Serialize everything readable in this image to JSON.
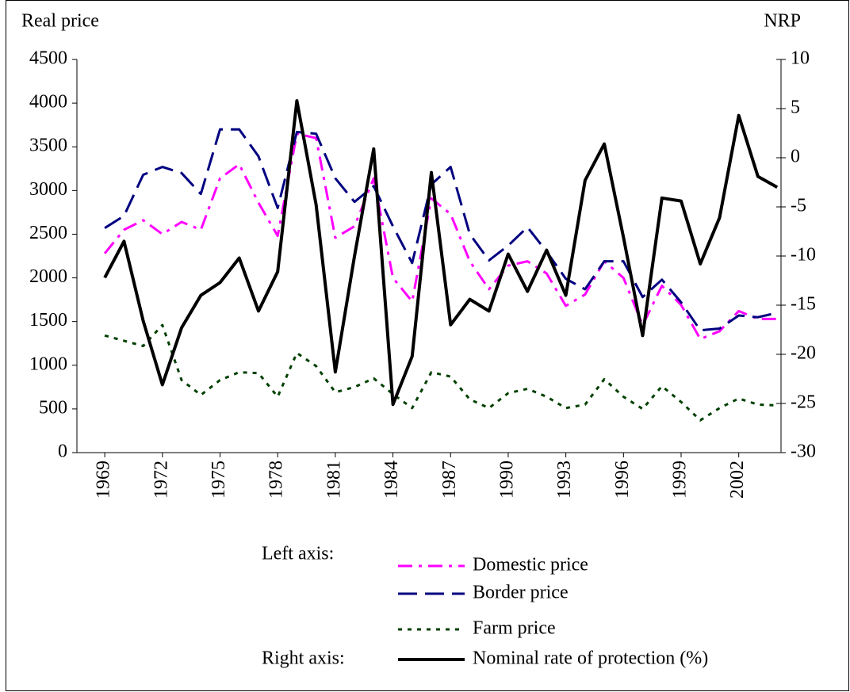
{
  "chart_data": {
    "type": "line",
    "y_label": "Real price",
    "y2_label": "NRP",
    "x": [
      1969,
      1970,
      1971,
      1972,
      1973,
      1974,
      1975,
      1976,
      1977,
      1978,
      1979,
      1980,
      1981,
      1982,
      1983,
      1984,
      1985,
      1986,
      1987,
      1988,
      1989,
      1990,
      1991,
      1992,
      1993,
      1994,
      1995,
      1996,
      1997,
      1998,
      1999,
      2000,
      2001,
      2002,
      2003,
      2004
    ],
    "xlim": [
      1967.55,
      2004.2
    ],
    "xticks": [
      1969,
      1972,
      1975,
      1978,
      1981,
      1984,
      1987,
      1990,
      1993,
      1996,
      1999,
      2002
    ],
    "ylim": [
      0,
      4500
    ],
    "yticks": [
      0,
      500,
      1000,
      1500,
      2000,
      2500,
      3000,
      3500,
      4000,
      4500
    ],
    "y2lim": [
      -30,
      10
    ],
    "y2ticks": [
      -30,
      -25,
      -20,
      -15,
      -10,
      -5,
      0,
      5,
      10
    ],
    "grid": false,
    "legend_headings": {
      "y": "Left axis:",
      "y2": "Right axis:"
    },
    "series": [
      {
        "name": "Domestic price",
        "color": "#ff00ff",
        "style": "dash-dot",
        "axis": "y",
        "values": [
          2280,
          2550,
          2660,
          2500,
          2640,
          2550,
          3140,
          3300,
          2860,
          2480,
          3650,
          3600,
          2460,
          2590,
          3140,
          2000,
          1730,
          2910,
          2730,
          2190,
          1870,
          2140,
          2190,
          2050,
          1680,
          1810,
          2190,
          2000,
          1460,
          1910,
          1690,
          1300,
          1390,
          1620,
          1530,
          1530
        ]
      },
      {
        "name": "Border price",
        "color": "#000080",
        "style": "dash",
        "axis": "y",
        "values": [
          2570,
          2710,
          3180,
          3270,
          3200,
          2960,
          3700,
          3700,
          3390,
          2800,
          3670,
          3650,
          3140,
          2870,
          3050,
          2590,
          2170,
          3070,
          3270,
          2500,
          2200,
          2370,
          2580,
          2300,
          1990,
          1870,
          2190,
          2190,
          1780,
          1980,
          1720,
          1400,
          1420,
          1570,
          1550,
          1600
        ]
      },
      {
        "name": "Farm price",
        "color": "#004000",
        "style": "dot",
        "axis": "y",
        "values": [
          1340,
          1280,
          1220,
          1460,
          830,
          660,
          830,
          920,
          910,
          640,
          1140,
          990,
          690,
          750,
          850,
          670,
          510,
          920,
          870,
          610,
          510,
          680,
          730,
          640,
          510,
          550,
          840,
          640,
          500,
          760,
          580,
          370,
          510,
          620,
          550,
          540
        ]
      },
      {
        "name": "Nominal rate of protection (%)",
        "color": "#000000",
        "style": "solid",
        "axis": "y2",
        "values": [
          -12.2,
          -8.5,
          -16.6,
          -23.1,
          -17.3,
          -14,
          -12.7,
          -10.2,
          -15.6,
          -11.6,
          5.8,
          -4.8,
          -21.8,
          -10,
          0.9,
          -25.1,
          -20.2,
          -1.5,
          -17,
          -14.4,
          -15.6,
          -9.8,
          -13.6,
          -9.4,
          -14,
          -2.3,
          1.4,
          -8.1,
          -18.1,
          -4.1,
          -4.4,
          -10.8,
          -6.1,
          4.3,
          -1.9,
          -3
        ]
      }
    ]
  }
}
